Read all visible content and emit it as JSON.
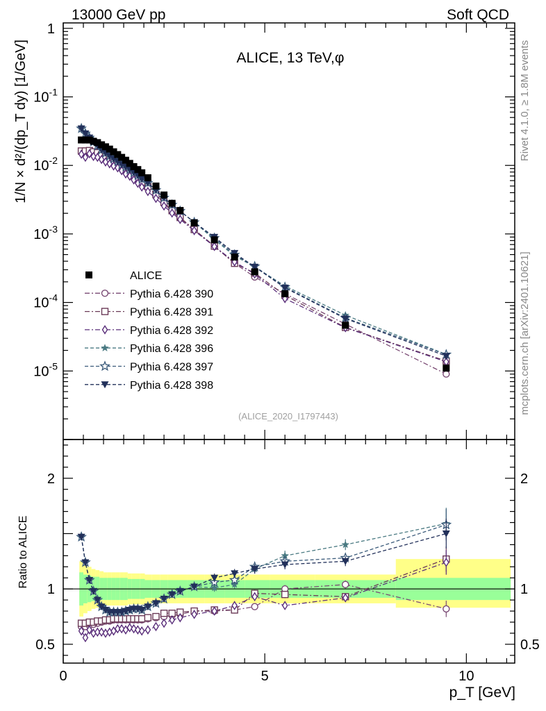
{
  "header": {
    "left": "13000 GeV pp",
    "right": "Soft QCD"
  },
  "side_labels": {
    "version": "Rivet 4.1.0, ≥ 1.8M events",
    "source": "mcplots.cern.ch [arXiv:2401.10621]"
  },
  "analysis_id": "(ALICE_2020_I1797443)",
  "colors": {
    "data": "#000000",
    "s390": "#7a4a74",
    "s391": "#6b3a57",
    "s392": "#5a2e7a",
    "s396": "#4a7a82",
    "s397": "#3a5a7a",
    "s398": "#22305a",
    "band_inner": "#99ff99",
    "band_outer": "#ffff88"
  },
  "chart_data": {
    "type": "scatter",
    "title": "ALICE, 13 TeV,φ",
    "xlabel": "p_T [GeV]",
    "ylabel": "1/N × d²/(dp_T dy) [1/GeV]",
    "ratio_ylabel": "Ratio to ALICE",
    "xlim": [
      0,
      11.2
    ],
    "ylim": [
      1e-06,
      1.2
    ],
    "ratio_ylim": [
      0.33,
      2.35
    ],
    "x_ticks": [
      "0",
      "5",
      "10"
    ],
    "y_ticks": [
      "1",
      "10^-1",
      "10^-2",
      "10^-3",
      "10^-4",
      "10^-5"
    ],
    "ratio_y_ticks": [
      "0.5",
      "1",
      "2"
    ],
    "x": [
      0.45,
      0.55,
      0.65,
      0.75,
      0.85,
      0.95,
      1.05,
      1.15,
      1.25,
      1.35,
      1.45,
      1.55,
      1.65,
      1.75,
      1.85,
      1.95,
      2.1,
      2.3,
      2.5,
      2.7,
      2.9,
      3.25,
      3.75,
      4.25,
      4.75,
      5.5,
      7.0,
      9.5
    ],
    "data": [
      0.0235,
      0.0235,
      0.0235,
      0.0225,
      0.0215,
      0.02,
      0.0187,
      0.0173,
      0.0158,
      0.0144,
      0.0131,
      0.0119,
      0.0107,
      0.0096,
      0.0087,
      0.0078,
      0.0066,
      0.005,
      0.0037,
      0.0028,
      0.0022,
      0.00145,
      0.00082,
      0.00046,
      0.00028,
      0.000134,
      4.65e-05,
      1.1e-05
    ],
    "bands": {
      "inner_low": [
        0.85,
        0.87,
        0.88,
        0.89,
        0.89,
        0.9,
        0.9,
        0.9,
        0.9,
        0.9,
        0.9,
        0.9,
        0.91,
        0.91,
        0.91,
        0.91,
        0.92,
        0.92,
        0.92,
        0.92,
        0.92,
        0.92,
        0.92,
        0.92,
        0.92,
        0.92,
        0.92,
        0.9
      ],
      "inner_high": [
        1.15,
        1.13,
        1.12,
        1.11,
        1.11,
        1.1,
        1.1,
        1.1,
        1.1,
        1.1,
        1.1,
        1.1,
        1.09,
        1.09,
        1.09,
        1.09,
        1.08,
        1.08,
        1.08,
        1.08,
        1.08,
        1.08,
        1.08,
        1.08,
        1.08,
        1.08,
        1.08,
        1.1
      ],
      "outer_low": [
        0.75,
        0.78,
        0.8,
        0.82,
        0.83,
        0.84,
        0.85,
        0.85,
        0.85,
        0.85,
        0.85,
        0.85,
        0.86,
        0.86,
        0.86,
        0.86,
        0.87,
        0.87,
        0.87,
        0.87,
        0.87,
        0.87,
        0.87,
        0.87,
        0.87,
        0.87,
        0.87,
        0.83
      ],
      "outer_high": [
        1.25,
        1.22,
        1.2,
        1.18,
        1.17,
        1.16,
        1.15,
        1.15,
        1.15,
        1.15,
        1.15,
        1.15,
        1.14,
        1.14,
        1.14,
        1.14,
        1.13,
        1.13,
        1.13,
        1.13,
        1.13,
        1.13,
        1.13,
        1.13,
        1.13,
        1.13,
        1.13,
        1.27
      ]
    },
    "series": [
      {
        "name": "ALICE",
        "marker": "square-filled",
        "color_key": "data",
        "dash": "",
        "ratios": []
      },
      {
        "name": "Pythia 6.428 390",
        "marker": "circle",
        "color_key": "s390",
        "dash": "7,3,2,3",
        "ratios": [
          0.66,
          0.66,
          0.67,
          0.68,
          0.69,
          0.7,
          0.71,
          0.71,
          0.72,
          0.72,
          0.72,
          0.72,
          0.72,
          0.72,
          0.72,
          0.72,
          0.73,
          0.74,
          0.75,
          0.76,
          0.77,
          0.8,
          0.8,
          0.81,
          0.84,
          1.0,
          1.04,
          0.82
        ]
      },
      {
        "name": "Pythia 6.428 391",
        "marker": "square",
        "color_key": "s391",
        "dash": "7,3,2,3",
        "ratios": [
          0.69,
          0.69,
          0.7,
          0.7,
          0.71,
          0.71,
          0.72,
          0.72,
          0.73,
          0.73,
          0.73,
          0.73,
          0.73,
          0.73,
          0.73,
          0.73,
          0.74,
          0.75,
          0.78,
          0.78,
          0.79,
          0.8,
          0.81,
          0.81,
          0.96,
          0.95,
          0.93,
          1.27
        ]
      },
      {
        "name": "Pythia 6.428 392",
        "marker": "diamond",
        "color_key": "s392",
        "dash": "7,3,2,3",
        "ratios": [
          0.62,
          0.56,
          0.63,
          0.6,
          0.61,
          0.61,
          0.6,
          0.61,
          0.62,
          0.64,
          0.64,
          0.63,
          0.65,
          0.64,
          0.63,
          0.62,
          0.63,
          0.66,
          0.69,
          0.72,
          0.74,
          0.77,
          0.8,
          0.85,
          0.93,
          0.85,
          0.92,
          1.24
        ]
      },
      {
        "name": "Pythia 6.428 396",
        "marker": "star-filled",
        "color_key": "s396",
        "dash": "5,3",
        "ratios": [
          1.47,
          1.24,
          1.08,
          0.98,
          0.9,
          0.84,
          0.81,
          0.79,
          0.79,
          0.79,
          0.79,
          0.8,
          0.81,
          0.82,
          0.82,
          0.81,
          0.84,
          0.87,
          0.91,
          0.95,
          0.98,
          1.02,
          1.01,
          1.04,
          1.18,
          1.3,
          1.4,
          1.59
        ]
      },
      {
        "name": "Pythia 6.428 397",
        "marker": "star",
        "color_key": "s397",
        "dash": "5,3",
        "ratios": [
          1.47,
          1.24,
          1.08,
          0.98,
          0.9,
          0.84,
          0.81,
          0.79,
          0.79,
          0.79,
          0.79,
          0.8,
          0.81,
          0.82,
          0.82,
          0.81,
          0.84,
          0.87,
          0.91,
          0.95,
          0.98,
          1.02,
          1.06,
          1.08,
          1.2,
          1.25,
          1.28,
          1.58
        ]
      },
      {
        "name": "Pythia 6.428 398",
        "marker": "triangle-down-filled",
        "color_key": "s398",
        "dash": "5,3",
        "ratios": [
          1.47,
          1.24,
          1.08,
          0.98,
          0.9,
          0.84,
          0.81,
          0.79,
          0.79,
          0.79,
          0.79,
          0.8,
          0.81,
          0.82,
          0.82,
          0.81,
          0.84,
          0.87,
          0.91,
          0.95,
          0.98,
          1.02,
          1.1,
          1.14,
          1.18,
          1.22,
          1.25,
          1.5
        ]
      }
    ]
  }
}
